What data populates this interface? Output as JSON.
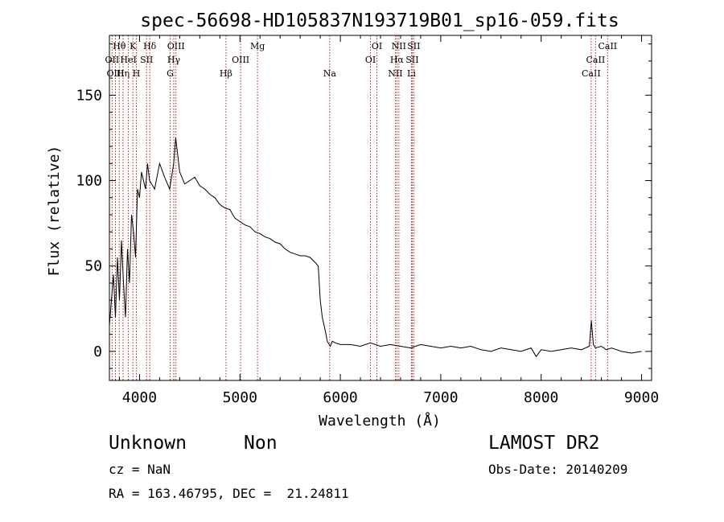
{
  "chart_data": {
    "type": "line",
    "title": "spec-56698-HD105837N193719B01_sp16-059.fits",
    "xlabel": "Wavelength (Å)",
    "ylabel": "Flux (relative)",
    "xlim": [
      3700,
      9100
    ],
    "ylim": [
      -17,
      185
    ],
    "xticks": [
      4000,
      5000,
      6000,
      7000,
      8000,
      9000
    ],
    "yticks": [
      0,
      50,
      100,
      150
    ],
    "grid": false,
    "line_color": "#000000",
    "marker_color": "#b22222",
    "series": [
      {
        "x": [
          3700,
          3720,
          3740,
          3760,
          3780,
          3800,
          3820,
          3840,
          3860,
          3880,
          3900,
          3920,
          3940,
          3960,
          3980,
          4000,
          4020,
          4040,
          4060,
          4080,
          4100,
          4150,
          4200,
          4250,
          4300,
          4340,
          4360,
          4400,
          4450,
          4500,
          4550,
          4600,
          4650,
          4700,
          4750,
          4800,
          4850,
          4900,
          4950,
          5000,
          5050,
          5100,
          5150,
          5200,
          5250,
          5300,
          5350,
          5400,
          5450,
          5500,
          5550,
          5600,
          5650,
          5700,
          5750,
          5780,
          5800,
          5820,
          5850,
          5870,
          5900,
          5920,
          5950,
          6000,
          6100,
          6200,
          6300,
          6400,
          6500,
          6600,
          6700,
          6800,
          6900,
          7000,
          7100,
          7200,
          7300,
          7400,
          7500,
          7600,
          7700,
          7800,
          7900,
          7950,
          8000,
          8100,
          8200,
          8300,
          8400,
          8480,
          8500,
          8520,
          8540,
          8600,
          8650,
          8700,
          8800,
          8900,
          9000
        ],
        "y": [
          15,
          30,
          45,
          20,
          55,
          30,
          65,
          40,
          20,
          60,
          40,
          80,
          70,
          55,
          95,
          90,
          105,
          100,
          95,
          110,
          100,
          95,
          110,
          102,
          95,
          110,
          125,
          105,
          98,
          100,
          102,
          97,
          95,
          92,
          90,
          86,
          84,
          83,
          78,
          76,
          74,
          73,
          70,
          69,
          67,
          66,
          64,
          63,
          60,
          58,
          57,
          56,
          56,
          55,
          52,
          50,
          30,
          20,
          12,
          6,
          3,
          6,
          5,
          4,
          4,
          3,
          5,
          3,
          4,
          3,
          2,
          4,
          3,
          2,
          3,
          2,
          3,
          1,
          0,
          2,
          1,
          0,
          2,
          -3,
          1,
          0,
          1,
          2,
          1,
          3,
          18,
          4,
          2,
          3,
          1,
          2,
          0,
          -1,
          0
        ]
      }
    ],
    "lines": [
      {
        "label": "Hθ",
        "x": 3798,
        "row": 0
      },
      {
        "label": "OII",
        "x": 3727,
        "row": 1
      },
      {
        "label": "OIII",
        "x": 3760,
        "row": 2
      },
      {
        "label": "Hη",
        "x": 3836,
        "row": 2
      },
      {
        "label": "HeI",
        "x": 3889,
        "row": 1
      },
      {
        "label": "K",
        "x": 3934,
        "row": 0
      },
      {
        "label": "H",
        "x": 3969,
        "row": 2
      },
      {
        "label": "SII",
        "x": 4070,
        "row": 1
      },
      {
        "label": "Hδ",
        "x": 4102,
        "row": 0
      },
      {
        "label": "G",
        "x": 4305,
        "row": 2
      },
      {
        "label": "Hγ",
        "x": 4341,
        "row": 1
      },
      {
        "label": "OIII",
        "x": 4363,
        "row": 0
      },
      {
        "label": "Hβ",
        "x": 4861,
        "row": 2
      },
      {
        "label": "OIII",
        "x": 5007,
        "row": 1
      },
      {
        "label": "Mg",
        "x": 5175,
        "row": 0
      },
      {
        "label": "Na",
        "x": 5894,
        "row": 2
      },
      {
        "label": "OI",
        "x": 6300,
        "row": 1
      },
      {
        "label": "OI",
        "x": 6364,
        "row": 0
      },
      {
        "label": "NII",
        "x": 6548,
        "row": 2
      },
      {
        "label": "Hα",
        "x": 6563,
        "row": 1
      },
      {
        "label": "NII",
        "x": 6583,
        "row": 0
      },
      {
        "label": "Li",
        "x": 6708,
        "row": 2
      },
      {
        "label": "SII",
        "x": 6716,
        "row": 1
      },
      {
        "label": "SII",
        "x": 6731,
        "row": 0
      },
      {
        "label": "CaII",
        "x": 8498,
        "row": 2
      },
      {
        "label": "CaII",
        "x": 8542,
        "row": 1
      },
      {
        "label": "CaII",
        "x": 8662,
        "row": 0
      }
    ]
  },
  "info": {
    "class": "Unknown",
    "subclass": "Non",
    "survey": "LAMOST DR2",
    "cz": "cz = NaN",
    "obs_date": "Obs-Date: 20140209",
    "coords": "RA = 163.46795, DEC =  21.24811"
  }
}
